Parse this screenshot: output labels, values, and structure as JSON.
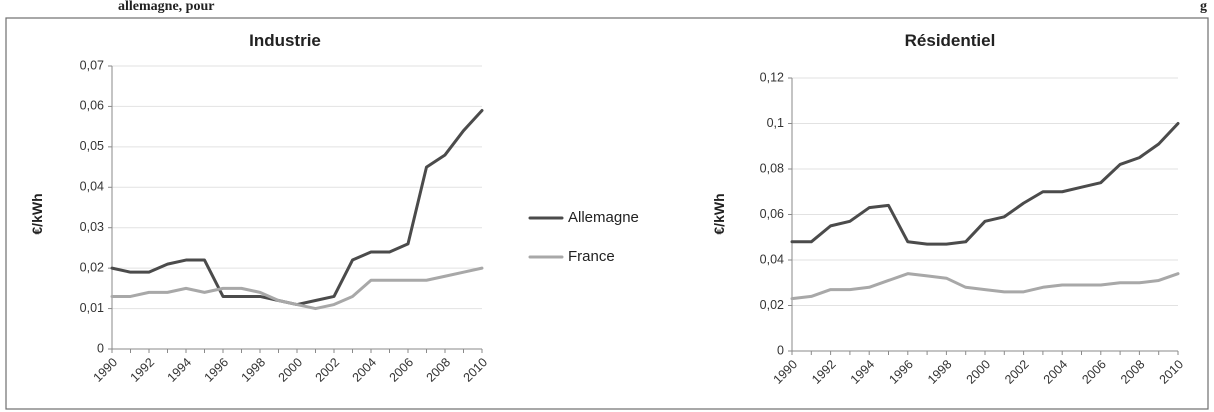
{
  "top_caption": {
    "left_text": "allemagne, pour",
    "right_text": "g"
  },
  "legend": {
    "entries": [
      {
        "name": "Allemagne",
        "color": "#4b4b4b"
      },
      {
        "name": "France",
        "color": "#a8a8a8"
      }
    ]
  },
  "chart_data": [
    {
      "type": "line",
      "title": "Industrie",
      "xlabel": "",
      "ylabel": "€/kWh",
      "x": [
        1990,
        1991,
        1992,
        1993,
        1994,
        1995,
        1996,
        1997,
        1998,
        1999,
        2000,
        2001,
        2002,
        2003,
        2004,
        2005,
        2006,
        2007,
        2008,
        2009,
        2010
      ],
      "xticks": [
        "1990",
        "1992",
        "1994",
        "1996",
        "1998",
        "2000",
        "2002",
        "2004",
        "2006",
        "2008",
        "2010"
      ],
      "ylim": [
        0,
        0.07
      ],
      "yticks": [
        0,
        0.01,
        0.02,
        0.03,
        0.04,
        0.05,
        0.06,
        0.07
      ],
      "ytick_labels": [
        "0",
        "0,01",
        "0,02",
        "0,03",
        "0,04",
        "0,05",
        "0,06",
        "0,07"
      ],
      "grid": "horizontal",
      "series": [
        {
          "name": "Allemagne",
          "color": "#4b4b4b",
          "values": [
            0.02,
            0.019,
            0.019,
            0.021,
            0.022,
            0.022,
            0.013,
            0.013,
            0.013,
            0.012,
            0.011,
            0.012,
            0.013,
            0.022,
            0.024,
            0.024,
            0.026,
            0.045,
            0.048,
            0.054,
            0.059
          ]
        },
        {
          "name": "France",
          "color": "#a8a8a8",
          "values": [
            0.013,
            0.013,
            0.014,
            0.014,
            0.015,
            0.014,
            0.015,
            0.015,
            0.014,
            0.012,
            0.011,
            0.01,
            0.011,
            0.013,
            0.017,
            0.017,
            0.017,
            0.017,
            0.018,
            0.019,
            0.02
          ]
        }
      ]
    },
    {
      "type": "line",
      "title": "Résidentiel",
      "xlabel": "",
      "ylabel": "€/kWh",
      "x": [
        1990,
        1991,
        1992,
        1993,
        1994,
        1995,
        1996,
        1997,
        1998,
        1999,
        2000,
        2001,
        2002,
        2003,
        2004,
        2005,
        2006,
        2007,
        2008,
        2009,
        2010
      ],
      "xticks": [
        "1990",
        "1992",
        "1994",
        "1996",
        "1998",
        "2000",
        "2002",
        "2004",
        "2006",
        "2008",
        "2010"
      ],
      "ylim": [
        0,
        0.12
      ],
      "yticks": [
        0,
        0.02,
        0.04,
        0.06,
        0.08,
        0.1,
        0.12
      ],
      "ytick_labels": [
        "0",
        "0,02",
        "0,04",
        "0,06",
        "0,08",
        "0,1",
        "0,12"
      ],
      "grid": "horizontal",
      "series": [
        {
          "name": "Allemagne",
          "color": "#4b4b4b",
          "values": [
            0.048,
            0.048,
            0.055,
            0.057,
            0.063,
            0.064,
            0.048,
            0.047,
            0.047,
            0.048,
            0.057,
            0.059,
            0.065,
            0.07,
            0.07,
            0.072,
            0.074,
            0.082,
            0.085,
            0.091,
            0.1
          ]
        },
        {
          "name": "France",
          "color": "#a8a8a8",
          "values": [
            0.023,
            0.024,
            0.027,
            0.027,
            0.028,
            0.031,
            0.034,
            0.033,
            0.032,
            0.028,
            0.027,
            0.026,
            0.026,
            0.028,
            0.029,
            0.029,
            0.029,
            0.03,
            0.03,
            0.031,
            0.034
          ]
        }
      ]
    }
  ]
}
